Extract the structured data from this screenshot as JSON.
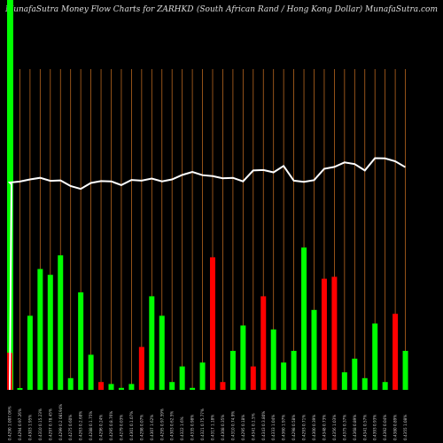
{
  "header": {
    "title_left": "MunafaSutra  Money Flow  Charts for ZARHKD",
    "title_right": "(South African  Rand / Hong Kong Dollar) MunafaSutra.com"
  },
  "colors": {
    "background": "#000000",
    "up": "#00ff00",
    "down": "#ff0000",
    "grid": "#b8661f",
    "price_line": "#ffffff"
  },
  "chart_data": {
    "type": "bar",
    "grid": "vertical",
    "categories": [
      "0.4290 1.007.06%",
      "0.4294 0.97.26%",
      "0.4303 1.95%",
      "0.4310 0.15.23%",
      "0.4297 0.78.45%",
      "0.4299 0.2 08194%",
      "0.4275 0.60%",
      "0.4263 0.2.68%",
      "0.4288 0.1.75%",
      "0.4296 0.24%",
      "0.4295 0.8.76%",
      "0.4279 0.03%",
      "0.4301 0.1.07%",
      "0.4298 0.07%",
      "0.4307 1.62%",
      "0.4295 0.97.59%",
      "0.4303 0.62.5%",
      "0.4322 1.6%",
      "0.4335 0.98%",
      "0.4321 0.75.77%",
      "0.4317 1.18%",
      "0.4308 0.35%",
      "0.4310 0.74.9%",
      "0.4295 0.18%",
      "0.4341 0.1.5%",
      "0.4343 0.3.80%",
      "0.4333 1.04%",
      "0.4360 1.97%",
      "0.4298 0.58%",
      "0.4293 0.71%",
      "0.4300 0.39%",
      "0.4348 0.73%",
      "0.4356 1.03%",
      "0.4375 0.37%",
      "0.4368 0.89%",
      "0.4341 0.57%",
      "0.4393 0.93%",
      "0.4392 0.04%",
      "0.4380 0.89%",
      "0.4355 1.08%"
    ],
    "flow": [
      "down",
      "up",
      "up",
      "up",
      "up",
      "up",
      "up",
      "up",
      "up",
      "down",
      "up",
      "up",
      "up",
      "down",
      "up",
      "up",
      "up",
      "up",
      "up",
      "up",
      "down",
      "down",
      "up",
      "up",
      "down",
      "down",
      "up",
      "up",
      "up",
      "up",
      "up",
      "down",
      "down",
      "up",
      "up",
      "up",
      "up",
      "up",
      "down",
      "up"
    ],
    "values": [
      19,
      0,
      38,
      62,
      59,
      69,
      6,
      50,
      18,
      4,
      3,
      1,
      3,
      22,
      48,
      38,
      4,
      12,
      1,
      14,
      68,
      4,
      20,
      33,
      12,
      48,
      31,
      14,
      20,
      73,
      41,
      57,
      58,
      9,
      16,
      6,
      34,
      4,
      39,
      20
    ],
    "ylim": [
      0,
      100
    ],
    "price_line": [
      0.429,
      0.4294,
      0.4303,
      0.431,
      0.4297,
      0.4299,
      0.4275,
      0.4263,
      0.4288,
      0.4296,
      0.4295,
      0.4279,
      0.4301,
      0.4298,
      0.4307,
      0.4295,
      0.4303,
      0.4322,
      0.4335,
      0.4321,
      0.4317,
      0.4308,
      0.431,
      0.4295,
      0.4341,
      0.4343,
      0.4333,
      0.436,
      0.4298,
      0.4293,
      0.43,
      0.4348,
      0.4356,
      0.4375,
      0.4368,
      0.4341,
      0.4393,
      0.4392,
      0.438,
      0.4355
    ]
  }
}
